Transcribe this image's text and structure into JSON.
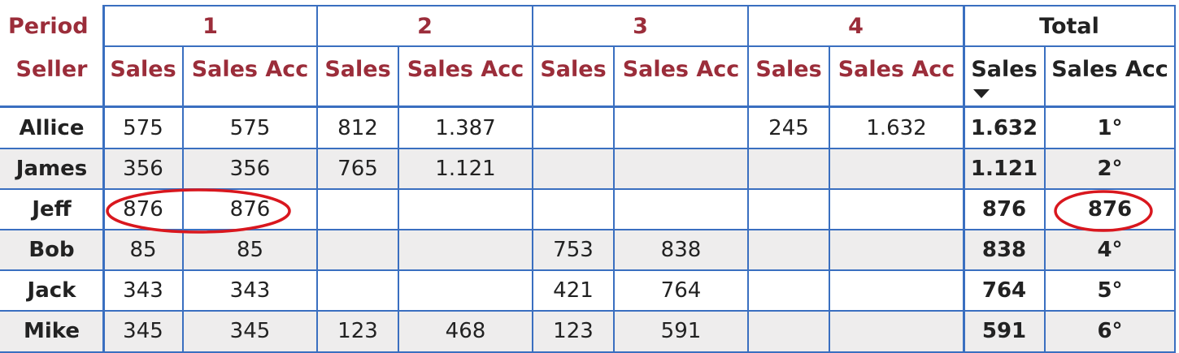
{
  "table": {
    "header": {
      "period_label": "Period",
      "periods": [
        "1",
        "2",
        "3",
        "4",
        "Total"
      ],
      "seller_label": "Seller",
      "measures": [
        "Sales",
        "Sales Acc",
        "Sales",
        "Sales Acc",
        "Sales",
        "Sales Acc",
        "Sales",
        "Sales Acc",
        "Sales",
        "Sales Acc"
      ]
    },
    "rows": [
      {
        "seller": "Allice",
        "cells": [
          "575",
          "575",
          "812",
          "1.387",
          null,
          null,
          "245",
          "1.632",
          "1.632",
          "1°"
        ]
      },
      {
        "seller": "James",
        "cells": [
          "356",
          "356",
          "765",
          "1.121",
          null,
          null,
          null,
          null,
          "1.121",
          "2°"
        ]
      },
      {
        "seller": "Jeff",
        "cells": [
          "876",
          "876",
          null,
          null,
          null,
          null,
          null,
          null,
          "876",
          "876"
        ]
      },
      {
        "seller": "Bob",
        "cells": [
          "85",
          "85",
          null,
          null,
          "753",
          "838",
          null,
          null,
          "838",
          "4°"
        ]
      },
      {
        "seller": "Jack",
        "cells": [
          "343",
          "343",
          null,
          null,
          "421",
          "764",
          null,
          null,
          "764",
          "5°"
        ]
      },
      {
        "seller": "Mike",
        "cells": [
          "345",
          "345",
          "123",
          "468",
          "123",
          "591",
          null,
          null,
          "591",
          "6°"
        ]
      }
    ]
  }
}
